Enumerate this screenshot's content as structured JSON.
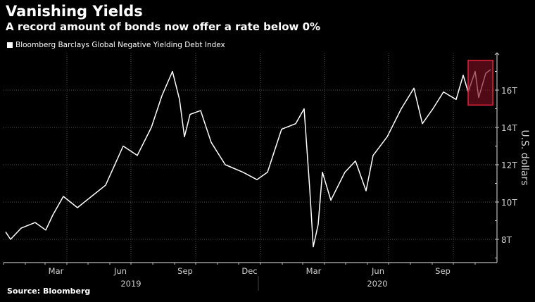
{
  "title": "Vanishing Yields",
  "subtitle": "A record amount of bonds now offer a rate below 0%",
  "source": "Source: Bloomberg",
  "colors": {
    "background": "#000000",
    "line": "#ffffff",
    "highlight": "#7a1020",
    "highlight_border": "#e0203a"
  },
  "chart_data": {
    "type": "line",
    "title": "Vanishing Yields",
    "subtitle": "A record amount of bonds now offer a rate below 0%",
    "ylabel": "U.S. dollars",
    "ylim": [
      6.75,
      18
    ],
    "xlim": [
      "2019-01-01",
      "2020-11-30"
    ],
    "grid": true,
    "legend_placement": "top-left",
    "yticks": [
      {
        "v": 8,
        "label": "8T"
      },
      {
        "v": 10,
        "label": "10T"
      },
      {
        "v": 12,
        "label": "12T"
      },
      {
        "v": 14,
        "label": "14T"
      },
      {
        "v": 16,
        "label": "16T"
      }
    ],
    "xticks": [
      {
        "month": "2019-03",
        "label": "Mar"
      },
      {
        "month": "2019-06",
        "label": "Jun"
      },
      {
        "month": "2019-09",
        "label": "Sep"
      },
      {
        "month": "2019-12",
        "label": "Dec"
      },
      {
        "month": "2020-03",
        "label": "Mar"
      },
      {
        "month": "2020-06",
        "label": "Jun"
      },
      {
        "month": "2020-09",
        "label": "Sep"
      }
    ],
    "years": [
      {
        "year": "2019",
        "center": "2019-07-01"
      },
      {
        "year": "2020",
        "center": "2020-06-15"
      }
    ],
    "highlight": {
      "from": "2020-10-22",
      "to": "2020-11-26",
      "ymin": 15.2,
      "ymax": 17.6
    },
    "series": [
      {
        "name": "Bloomberg Barclays Global Negative Yielding Debt Index",
        "unit": "trillion USD",
        "points": [
          [
            "2019-01-04",
            8.4
          ],
          [
            "2019-01-11",
            8.0
          ],
          [
            "2019-01-26",
            8.6
          ],
          [
            "2019-02-15",
            8.9
          ],
          [
            "2019-03-02",
            8.5
          ],
          [
            "2019-03-12",
            9.3
          ],
          [
            "2019-03-27",
            10.3
          ],
          [
            "2019-04-16",
            9.7
          ],
          [
            "2019-05-06",
            10.3
          ],
          [
            "2019-05-26",
            10.9
          ],
          [
            "2019-06-20",
            13.0
          ],
          [
            "2019-07-10",
            12.5
          ],
          [
            "2019-07-30",
            14.0
          ],
          [
            "2019-08-14",
            15.7
          ],
          [
            "2019-08-29",
            17.0
          ],
          [
            "2019-09-08",
            15.5
          ],
          [
            "2019-09-15",
            13.5
          ],
          [
            "2019-09-23",
            14.7
          ],
          [
            "2019-10-08",
            14.9
          ],
          [
            "2019-10-23",
            13.2
          ],
          [
            "2019-11-12",
            12.0
          ],
          [
            "2019-12-07",
            11.6
          ],
          [
            "2019-12-27",
            11.2
          ],
          [
            "2020-01-11",
            11.6
          ],
          [
            "2020-01-31",
            13.9
          ],
          [
            "2020-02-20",
            14.2
          ],
          [
            "2020-03-03",
            15.0
          ],
          [
            "2020-03-11",
            10.7
          ],
          [
            "2020-03-16",
            7.6
          ],
          [
            "2020-03-23",
            8.8
          ],
          [
            "2020-03-29",
            11.6
          ],
          [
            "2020-04-10",
            10.1
          ],
          [
            "2020-04-30",
            11.6
          ],
          [
            "2020-05-15",
            12.2
          ],
          [
            "2020-05-30",
            10.6
          ],
          [
            "2020-06-09",
            12.5
          ],
          [
            "2020-06-29",
            13.5
          ],
          [
            "2020-07-19",
            15.0
          ],
          [
            "2020-08-06",
            16.1
          ],
          [
            "2020-08-18",
            14.2
          ],
          [
            "2020-09-02",
            15.0
          ],
          [
            "2020-09-17",
            15.9
          ],
          [
            "2020-10-05",
            15.5
          ],
          [
            "2020-10-15",
            16.8
          ],
          [
            "2020-10-22",
            15.9
          ],
          [
            "2020-11-01",
            17.0
          ],
          [
            "2020-11-06",
            15.6
          ],
          [
            "2020-11-16",
            16.9
          ],
          [
            "2020-11-23",
            17.1
          ]
        ]
      }
    ]
  }
}
